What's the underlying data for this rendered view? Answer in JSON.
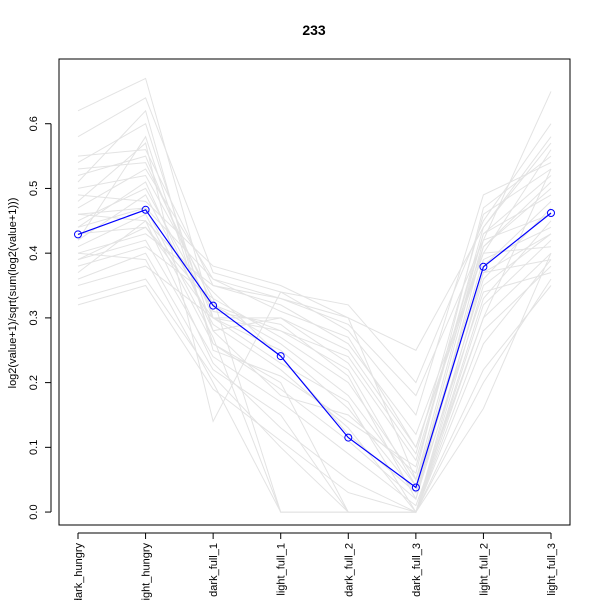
{
  "chart_data": {
    "type": "line",
    "title": "233",
    "xlabel": "",
    "ylabel": "log2(value+1)/sqrt(sum(log2(value+1)))",
    "categories": [
      "dark_hungry",
      "light_hungry",
      "dark_full_1",
      "light_full_1",
      "dark_full_2",
      "dark_full_3",
      "light_full_2",
      "light_full_3"
    ],
    "ylim": [
      -0.02,
      0.7
    ],
    "yticks": [
      0.0,
      0.1,
      0.2,
      0.3,
      0.4,
      0.5,
      0.6
    ],
    "ytick_labels": [
      "0.0",
      "0.1",
      "0.2",
      "0.3",
      "0.4",
      "0.5",
      "0.6"
    ],
    "grid": false,
    "highlight_color": "#0000ff",
    "background_color": "#e3e3e3",
    "series": [
      {
        "values": [
          0.429,
          0.467,
          0.319,
          0.241,
          0.115,
          0.038,
          0.379,
          0.462
        ]
      }
    ],
    "background_series": [
      [
        0.62,
        0.67,
        0.3,
        0.28,
        0.22,
        0.04,
        0.42,
        0.65
      ],
      [
        0.58,
        0.64,
        0.37,
        0.34,
        0.32,
        0.2,
        0.45,
        0.6
      ],
      [
        0.55,
        0.56,
        0.35,
        0.33,
        0.3,
        0.25,
        0.44,
        0.57
      ],
      [
        0.54,
        0.6,
        0.28,
        0.18,
        0.15,
        0.06,
        0.47,
        0.55
      ],
      [
        0.52,
        0.55,
        0.3,
        0.3,
        0.25,
        0.1,
        0.4,
        0.56
      ],
      [
        0.5,
        0.52,
        0.33,
        0.0,
        0.0,
        0.0,
        0.3,
        0.53
      ],
      [
        0.49,
        0.48,
        0.38,
        0.35,
        0.3,
        0.05,
        0.43,
        0.52
      ],
      [
        0.47,
        0.53,
        0.36,
        0.31,
        0.27,
        0.1,
        0.41,
        0.5
      ],
      [
        0.46,
        0.45,
        0.34,
        0.24,
        0.12,
        0.03,
        0.38,
        0.48
      ],
      [
        0.45,
        0.5,
        0.31,
        0.29,
        0.21,
        0.02,
        0.36,
        0.47
      ],
      [
        0.44,
        0.47,
        0.27,
        0.0,
        0.0,
        0.0,
        0.33,
        0.45
      ],
      [
        0.43,
        0.44,
        0.32,
        0.26,
        0.18,
        0.04,
        0.39,
        0.44
      ],
      [
        0.42,
        0.49,
        0.29,
        0.22,
        0.13,
        0.0,
        0.35,
        0.43
      ],
      [
        0.41,
        0.46,
        0.26,
        0.2,
        0.0,
        0.0,
        0.32,
        0.42
      ],
      [
        0.4,
        0.43,
        0.35,
        0.32,
        0.26,
        0.12,
        0.4,
        0.41
      ],
      [
        0.39,
        0.42,
        0.24,
        0.17,
        0.09,
        0.01,
        0.3,
        0.4
      ],
      [
        0.38,
        0.41,
        0.33,
        0.27,
        0.2,
        0.05,
        0.37,
        0.39
      ],
      [
        0.36,
        0.4,
        0.22,
        0.15,
        0.0,
        0.0,
        0.28,
        0.38
      ],
      [
        0.35,
        0.38,
        0.3,
        0.25,
        0.16,
        0.03,
        0.34,
        0.37
      ],
      [
        0.33,
        0.36,
        0.21,
        0.1,
        0.0,
        0.0,
        0.2,
        0.36
      ],
      [
        0.48,
        0.57,
        0.14,
        0.34,
        0.28,
        0.15,
        0.49,
        0.54
      ],
      [
        0.51,
        0.62,
        0.25,
        0.21,
        0.14,
        0.07,
        0.44,
        0.58
      ],
      [
        0.37,
        0.45,
        0.23,
        0.13,
        0.05,
        0.0,
        0.16,
        0.4
      ],
      [
        0.44,
        0.51,
        0.28,
        0.3,
        0.23,
        0.08,
        0.43,
        0.49
      ],
      [
        0.4,
        0.39,
        0.2,
        0.0,
        0.0,
        0.0,
        0.26,
        0.39
      ],
      [
        0.53,
        0.54,
        0.32,
        0.28,
        0.24,
        0.09,
        0.46,
        0.53
      ],
      [
        0.46,
        0.47,
        0.36,
        0.33,
        0.29,
        0.18,
        0.42,
        0.46
      ],
      [
        0.32,
        0.35,
        0.19,
        0.11,
        0.03,
        0.0,
        0.22,
        0.35
      ],
      [
        0.42,
        0.58,
        0.26,
        0.19,
        0.11,
        0.02,
        0.41,
        0.51
      ],
      [
        0.39,
        0.44,
        0.3,
        0.23,
        0.17,
        0.0,
        0.37,
        0.43
      ]
    ]
  }
}
